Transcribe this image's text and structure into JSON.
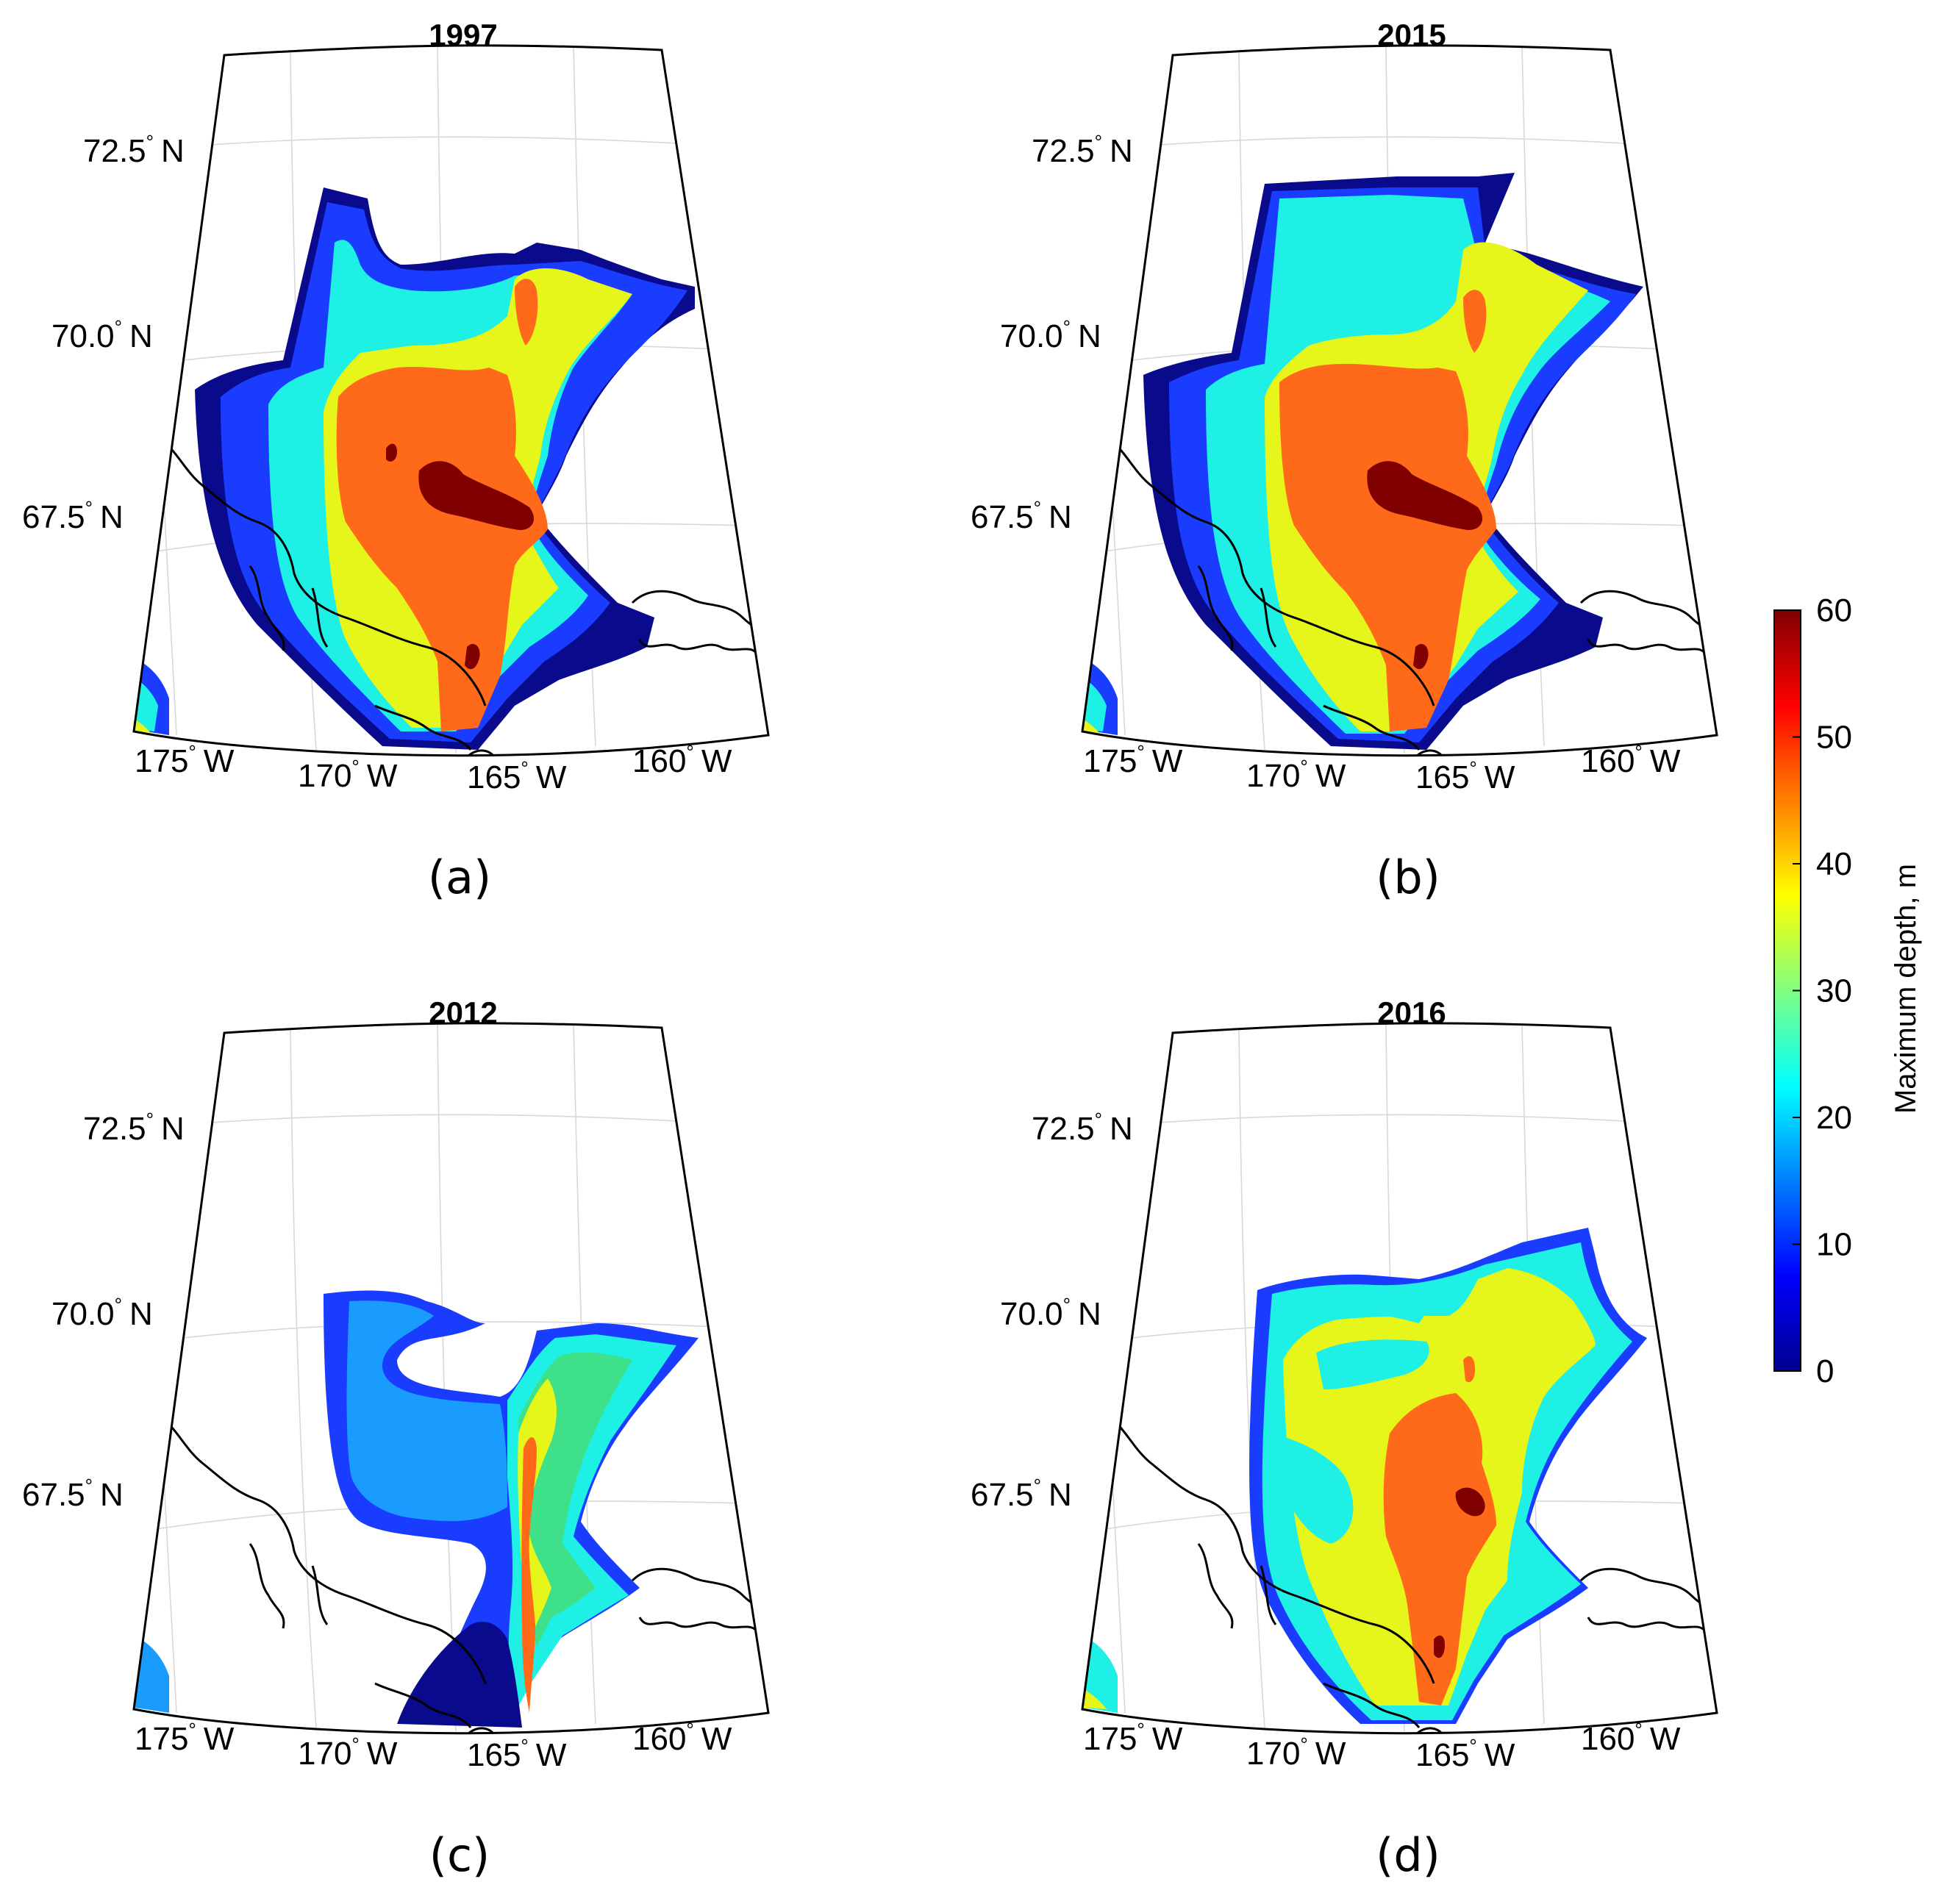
{
  "figure": {
    "panels": [
      {
        "id": "a",
        "title": "1997",
        "caption": "(a)",
        "variant": "1997"
      },
      {
        "id": "b",
        "title": "2015",
        "caption": "(b)",
        "variant": "2015"
      },
      {
        "id": "c",
        "title": "2012",
        "caption": "(c)",
        "variant": "2012"
      },
      {
        "id": "d",
        "title": "2016",
        "caption": "(d)",
        "variant": "2016"
      }
    ],
    "lat_labels": [
      "72.5",
      "70.0",
      "67.5"
    ],
    "lat_suffix": "N",
    "lon_labels": [
      "175",
      "170",
      "165",
      "160"
    ],
    "lon_suffix": "W",
    "degree_symbol": "°"
  },
  "colorbar": {
    "label": "Maximum depth, m",
    "ticks": [
      "60",
      "50",
      "40",
      "30",
      "20",
      "10",
      "0"
    ],
    "range": [
      0,
      60
    ],
    "colormap": "jet",
    "colors": [
      "#00008f",
      "#0000ff",
      "#0080ff",
      "#00ffff",
      "#80ff80",
      "#ffff00",
      "#ff8000",
      "#ff0000",
      "#800000"
    ]
  },
  "palette": {
    "deep_navy": "#0a0a8c",
    "blue": "#1a3cff",
    "sky": "#1a9cff",
    "cyan": "#1ef0e6",
    "green": "#3ee08a",
    "yellow": "#e6f51a",
    "orange": "#ff6a1a",
    "red": "#e8311a",
    "darkred": "#800000"
  }
}
